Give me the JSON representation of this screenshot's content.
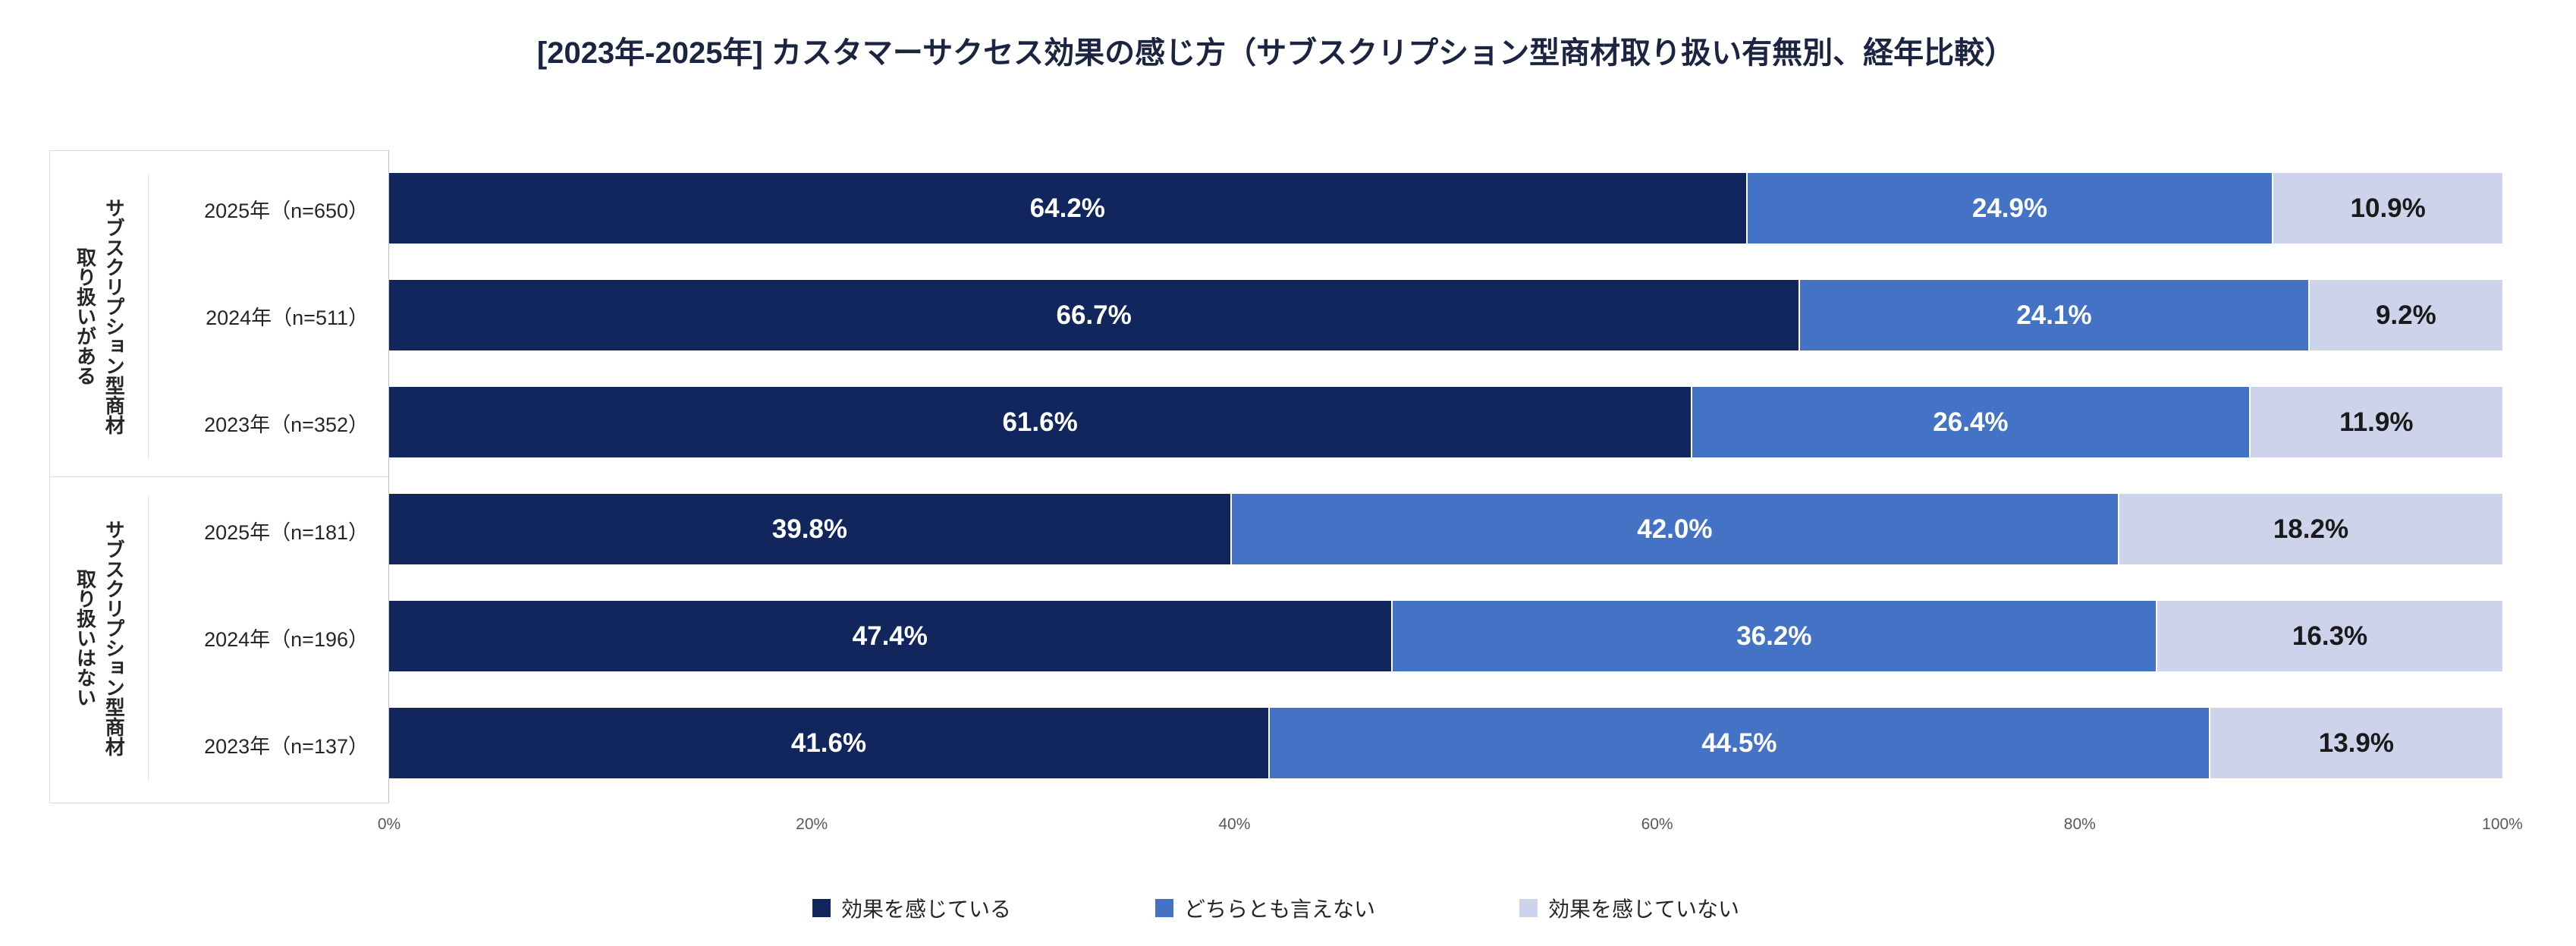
{
  "title": "[2023年-2025年] カスタマーサクセス効果の感じ方（サブスクリプション型商材取り扱い有無別、経年比較）",
  "groups": [
    {
      "line1": "サブスクリプション型商材",
      "line2": "取り扱いがある"
    },
    {
      "line1": "サブスクリプション型商材",
      "line2": "取り扱いはない"
    }
  ],
  "chart_data": {
    "type": "bar",
    "orientation": "horizontal",
    "stacked": true,
    "title": "[2023年-2025年] カスタマーサクセス効果の感じ方（サブスクリプション型商材取り扱い有無別、経年比較）",
    "group_labels": [
      "サブスクリプション型商材 取り扱いがある",
      "サブスクリプション型商材 取り扱いはない"
    ],
    "categories": [
      "2025年（n=650）",
      "2024年（n=511）",
      "2023年（n=352）",
      "2025年（n=181）",
      "2024年（n=196）",
      "2023年（n=137）"
    ],
    "series": [
      {
        "name": "効果を感じている",
        "color": "#12265E",
        "values": [
          64.2,
          66.7,
          61.6,
          39.8,
          47.4,
          41.6
        ]
      },
      {
        "name": "どちらとも言えない",
        "color": "#4472C4",
        "values": [
          24.9,
          24.1,
          26.4,
          42.0,
          36.2,
          44.5
        ]
      },
      {
        "name": "効果を感じていない",
        "color": "#CDD3EA",
        "values": [
          10.9,
          9.2,
          11.9,
          18.2,
          16.3,
          13.9
        ]
      }
    ],
    "xlim": [
      0,
      100
    ],
    "x_ticks": [
      "0%",
      "20%",
      "40%",
      "60%",
      "80%",
      "100%"
    ],
    "value_suffix": "%",
    "legend_position": "bottom",
    "grid": false
  }
}
